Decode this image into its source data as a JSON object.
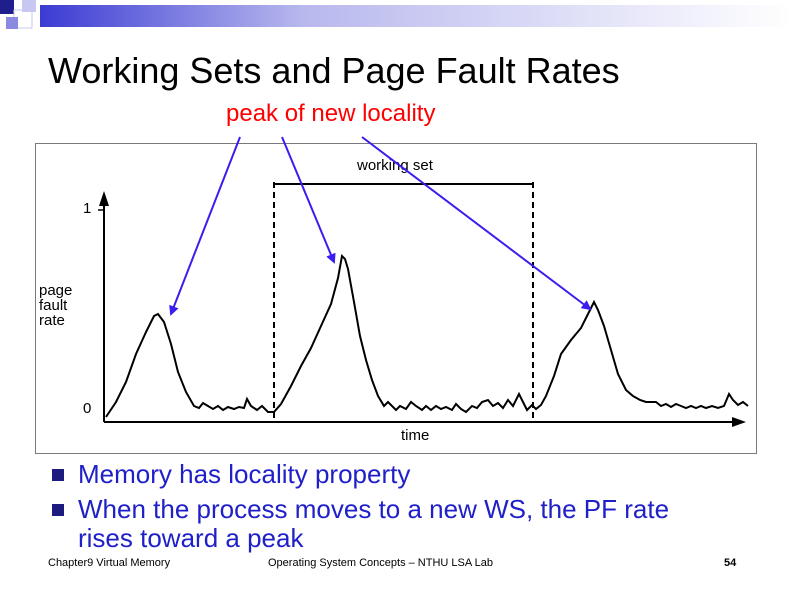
{
  "slide": {
    "title": "Working Sets and Page Fault Rates",
    "annotation": "peak of new locality",
    "colors": {
      "annotation": "#ff0000",
      "arrows": "#3a1df0",
      "bullets": "#2020c8",
      "bullet_square": "#1b1b80"
    }
  },
  "figure": {
    "y_tick_top": "1",
    "y_tick_bottom": "0",
    "ylabel_lines": [
      "page",
      "fault",
      "rate"
    ],
    "xlabel": "time",
    "working_set_label": "working set"
  },
  "bullets": [
    "Memory has locality property",
    "When the process moves to a new WS, the PF rate rises toward a peak"
  ],
  "footer": {
    "left": "Chapter9 Virtual Memory",
    "center": "Operating System Concepts – NTHU LSA Lab",
    "page": "54"
  }
}
